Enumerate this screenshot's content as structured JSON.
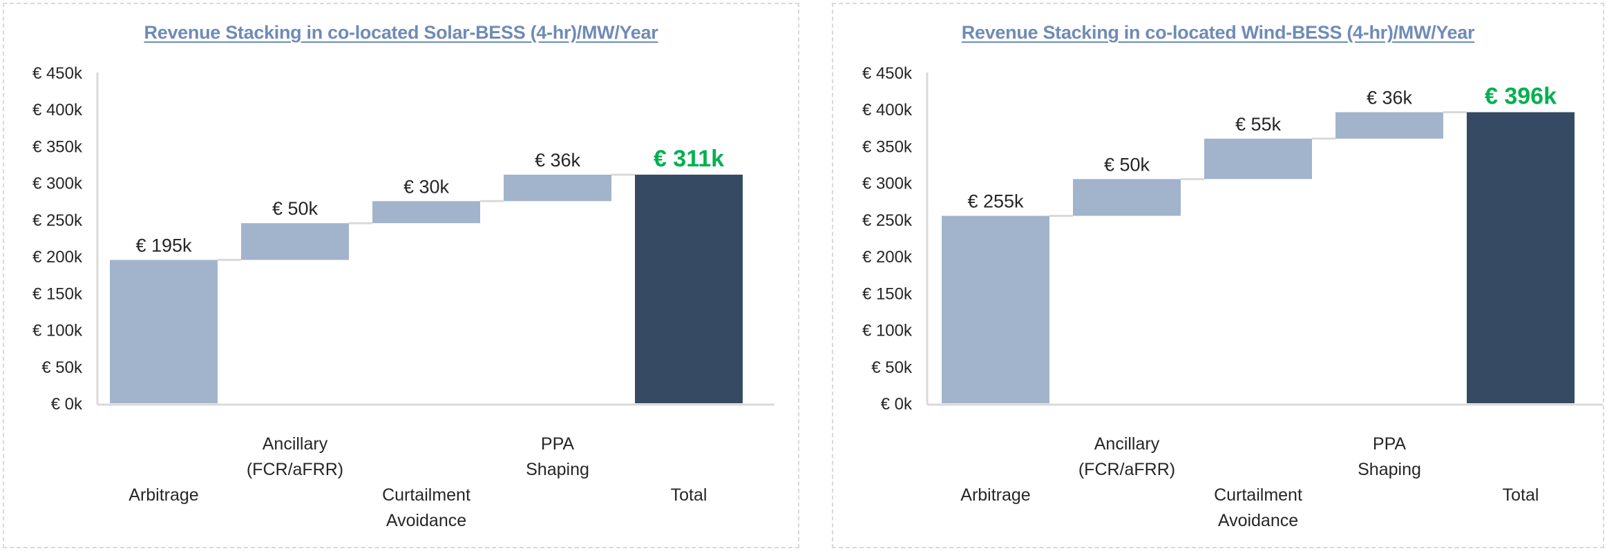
{
  "colors": {
    "increment": "#a2b4cc",
    "total": "#364b63",
    "total_label": "#00b050",
    "title": "#6f8bb6",
    "axis": "#d9d9d9",
    "text": "#262626"
  },
  "chart_data": [
    {
      "type": "bar",
      "subtype": "waterfall",
      "title": "Revenue Stacking in co-located Solar-BESS (4-hr)/MW/Year",
      "categories": [
        [
          "Arbitrage"
        ],
        [
          "Ancillary",
          "(FCR/aFRR)"
        ],
        [
          "Curtailment",
          "Avoidance"
        ],
        [
          "PPA",
          "Shaping"
        ],
        [
          "Total"
        ]
      ],
      "values": [
        195,
        50,
        30,
        36,
        311
      ],
      "is_total": [
        false,
        false,
        false,
        false,
        true
      ],
      "data_labels": [
        "€ 195k",
        "€ 50k",
        "€ 30k",
        "€ 36k",
        "€ 311k"
      ],
      "ylim": [
        0,
        450
      ],
      "yticks": [
        0,
        50,
        100,
        150,
        200,
        250,
        300,
        350,
        400,
        450
      ],
      "ytick_labels": [
        "€ 0k",
        "€ 50k",
        "€ 100k",
        "€ 150k",
        "€ 200k",
        "€ 250k",
        "€ 300k",
        "€ 350k",
        "€ 400k",
        "€ 450k"
      ],
      "xlabel": "",
      "ylabel": "",
      "grid": false,
      "legend": "none"
    },
    {
      "type": "bar",
      "subtype": "waterfall",
      "title": "Revenue Stacking in co-located Wind-BESS (4-hr)/MW/Year",
      "categories": [
        [
          "Arbitrage"
        ],
        [
          "Ancillary",
          "(FCR/aFRR)"
        ],
        [
          "Curtailment",
          "Avoidance"
        ],
        [
          "PPA",
          "Shaping"
        ],
        [
          "Total"
        ]
      ],
      "values": [
        255,
        50,
        55,
        36,
        396
      ],
      "is_total": [
        false,
        false,
        false,
        false,
        true
      ],
      "data_labels": [
        "€ 255k",
        "€ 50k",
        "€ 55k",
        "€ 36k",
        "€ 396k"
      ],
      "ylim": [
        0,
        450
      ],
      "yticks": [
        0,
        50,
        100,
        150,
        200,
        250,
        300,
        350,
        400,
        450
      ],
      "ytick_labels": [
        "€ 0k",
        "€ 50k",
        "€ 100k",
        "€ 150k",
        "€ 200k",
        "€ 250k",
        "€ 300k",
        "€ 350k",
        "€ 400k",
        "€ 450k"
      ],
      "xlabel": "",
      "ylabel": "",
      "grid": false,
      "legend": "none"
    }
  ]
}
